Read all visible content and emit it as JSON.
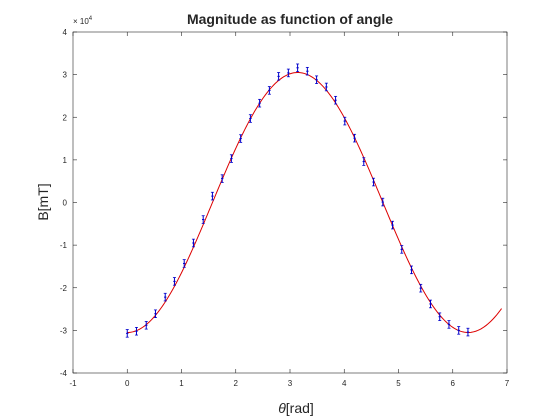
{
  "chart_data": {
    "type": "scatter",
    "title": "Magnitude as function of  angle",
    "xlabel_symbol": "θ",
    "xlabel_unit": "[rad]",
    "ylabel": "B[mT]",
    "y_exponent_base": "× 10",
    "y_exponent_power": "4",
    "xlim": [
      -1,
      7
    ],
    "ylim": [
      -4,
      4
    ],
    "y_scale_factor": 10000,
    "xticks": [
      -1,
      0,
      1,
      2,
      3,
      4,
      5,
      6,
      7
    ],
    "yticks": [
      -4,
      -3,
      -2,
      -1,
      0,
      1,
      2,
      3,
      4
    ],
    "grid": false,
    "legend": "none",
    "series": [
      {
        "kind": "errorbar",
        "color": "#0000cc",
        "x": [
          0.0,
          0.17,
          0.35,
          0.52,
          0.7,
          0.87,
          1.05,
          1.22,
          1.4,
          1.57,
          1.75,
          1.92,
          2.09,
          2.27,
          2.44,
          2.62,
          2.79,
          2.97,
          3.14,
          3.32,
          3.49,
          3.67,
          3.84,
          4.01,
          4.19,
          4.36,
          4.54,
          4.71,
          4.89,
          5.06,
          5.24,
          5.41,
          5.59,
          5.76,
          5.93,
          6.11,
          6.28
        ],
        "y": [
          -30700,
          -30200,
          -28800,
          -26100,
          -22200,
          -18500,
          -14300,
          -9500,
          -4000,
          1500,
          5600,
          10300,
          15000,
          19700,
          23300,
          26300,
          29600,
          30400,
          31600,
          30800,
          28800,
          27100,
          24000,
          19100,
          15100,
          9600,
          4800,
          100,
          -5300,
          -11000,
          -15800,
          -20100,
          -23800,
          -26800,
          -28600,
          -30000,
          -30400
        ],
        "err": [
          900,
          900,
          900,
          900,
          900,
          900,
          900,
          900,
          900,
          900,
          900,
          900,
          900,
          900,
          900,
          900,
          900,
          900,
          900,
          900,
          900,
          900,
          900,
          900,
          900,
          900,
          900,
          900,
          900,
          900,
          900,
          900,
          900,
          900,
          900,
          900,
          900
        ]
      },
      {
        "kind": "fit-line",
        "color": "#dd0000",
        "amplitude": -30500,
        "x_start": 0,
        "x_end": 6.9
      }
    ]
  }
}
